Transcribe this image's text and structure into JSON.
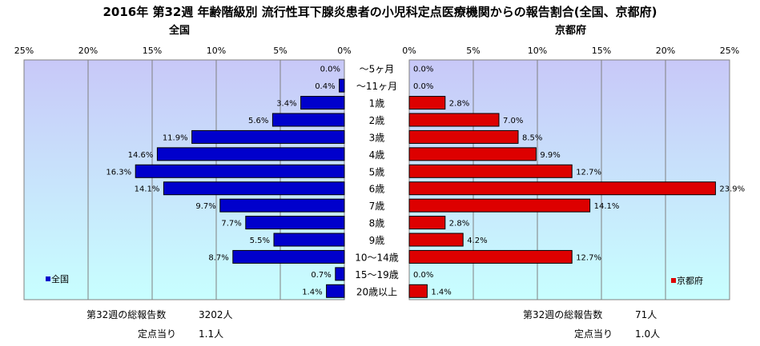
{
  "title": "2016年 第32週 年齢階級別 流行性耳下腺炎患者の小児科定点医療機関からの報告割合(全国、京都府)",
  "left_title": "全国",
  "right_title": "京都府",
  "colors": {
    "national": "#0000cc",
    "kyoto": "#dd0000",
    "grid": "#808080",
    "plot_top": "#c8c8f8",
    "plot_bottom": "#c8ffff"
  },
  "chart_data": {
    "type": "bar",
    "orientation": "horizontal-butterfly",
    "categories": [
      "～5ヶ月",
      "～11ヶ月",
      "1歳",
      "2歳",
      "3歳",
      "4歳",
      "5歳",
      "6歳",
      "7歳",
      "8歳",
      "9歳",
      "10～14歳",
      "15～19歳",
      "20歳以上"
    ],
    "axis_ticks": [
      "25%",
      "20%",
      "15%",
      "10%",
      "5%",
      "0%"
    ],
    "axis_ticks_right": [
      "0%",
      "5%",
      "10%",
      "15%",
      "20%",
      "25%"
    ],
    "xlim": [
      0,
      25
    ],
    "series": [
      {
        "name": "全国",
        "values": [
          0.0,
          0.4,
          3.4,
          5.6,
          11.9,
          14.6,
          16.3,
          14.1,
          9.7,
          7.7,
          5.5,
          8.7,
          0.7,
          1.4
        ],
        "labels": [
          "0.0%",
          "0.4%",
          "3.4%",
          "5.6%",
          "11.9%",
          "14.6%",
          "16.3%",
          "14.1%",
          "9.7%",
          "7.7%",
          "5.5%",
          "8.7%",
          "0.7%",
          "1.4%"
        ]
      },
      {
        "name": "京都府",
        "values": [
          0.0,
          0.0,
          2.8,
          7.0,
          8.5,
          9.9,
          12.7,
          23.9,
          14.1,
          2.8,
          4.2,
          12.7,
          0.0,
          1.4
        ],
        "labels": [
          "0.0%",
          "0.0%",
          "2.8%",
          "7.0%",
          "8.5%",
          "9.9%",
          "12.7%",
          "23.9%",
          "14.1%",
          "2.8%",
          "4.2%",
          "12.7%",
          "0.0%",
          "1.4%"
        ]
      }
    ],
    "grid": true,
    "legend": [
      "bottom-left",
      "bottom-right"
    ]
  },
  "footer": {
    "national_total_label": "第32週の総報告数",
    "national_total_value": "3202人",
    "national_per_label": "定点当り",
    "national_per_value": "1.1人",
    "kyoto_total_label": "第32週の総報告数",
    "kyoto_total_value": "71人",
    "kyoto_per_label": "定点当り",
    "kyoto_per_value": "1.0人"
  }
}
